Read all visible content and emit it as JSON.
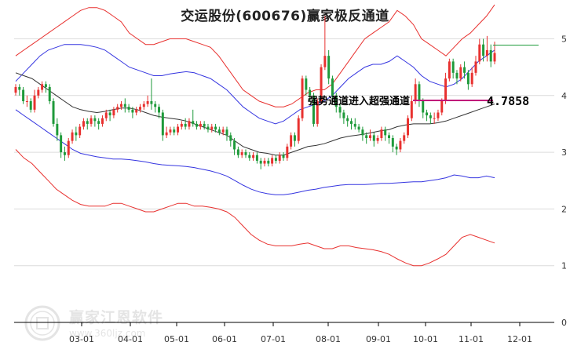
{
  "title": "交运股份(600676)赢家极反通道",
  "watermark": {
    "text": "赢家江恩软件",
    "url": "www.360ljz.com"
  },
  "chart_data": {
    "type": "candlestick",
    "title": "交运股份(600676)赢家极反通道",
    "x_labels": [
      "03-01",
      "04-01",
      "05-01",
      "06-01",
      "07-01",
      "08-01",
      "09-01",
      "10-01",
      "11-01",
      "12-01"
    ],
    "y_ticks": [
      0,
      1,
      2,
      3,
      4,
      5
    ],
    "ylim": [
      0,
      5.2
    ],
    "annotation": {
      "label": "强势通道进入超强通道",
      "value": "4.7858"
    },
    "candles": [
      [
        4.05,
        4.15,
        4.0,
        4.2
      ],
      [
        4.15,
        4.1,
        4.0,
        4.2
      ],
      [
        4.1,
        3.9,
        3.85,
        4.15
      ],
      [
        3.9,
        3.9,
        3.8,
        4.0
      ],
      [
        3.9,
        3.75,
        3.7,
        3.95
      ],
      [
        3.75,
        4.0,
        3.7,
        4.1
      ],
      [
        4.0,
        4.1,
        3.95,
        4.15
      ],
      [
        4.1,
        4.2,
        4.05,
        4.25
      ],
      [
        4.2,
        4.15,
        4.05,
        4.25
      ],
      [
        4.15,
        3.9,
        3.85,
        4.2
      ],
      [
        3.9,
        3.5,
        3.45,
        3.95
      ],
      [
        3.5,
        3.3,
        3.2,
        3.6
      ],
      [
        3.3,
        3.0,
        2.9,
        3.35
      ],
      [
        3.0,
        2.95,
        2.85,
        3.1
      ],
      [
        2.95,
        3.2,
        2.9,
        3.25
      ],
      [
        3.2,
        3.35,
        3.15,
        3.4
      ],
      [
        3.35,
        3.3,
        3.2,
        3.45
      ],
      [
        3.3,
        3.45,
        3.25,
        3.5
      ],
      [
        3.45,
        3.55,
        3.4,
        3.6
      ],
      [
        3.55,
        3.5,
        3.4,
        3.6
      ],
      [
        3.5,
        3.6,
        3.45,
        3.65
      ],
      [
        3.6,
        3.55,
        3.45,
        3.65
      ],
      [
        3.55,
        3.5,
        3.4,
        3.6
      ],
      [
        3.5,
        3.6,
        3.45,
        3.65
      ],
      [
        3.6,
        3.7,
        3.55,
        3.75
      ],
      [
        3.7,
        3.65,
        3.55,
        3.75
      ],
      [
        3.65,
        3.75,
        3.6,
        3.8
      ],
      [
        3.75,
        3.8,
        3.7,
        3.85
      ],
      [
        3.8,
        3.85,
        3.75,
        3.9
      ],
      [
        3.85,
        3.8,
        3.7,
        3.95
      ],
      [
        3.8,
        3.75,
        3.7,
        3.85
      ],
      [
        3.75,
        3.7,
        3.6,
        3.8
      ],
      [
        3.7,
        3.75,
        3.65,
        3.8
      ],
      [
        3.75,
        3.8,
        3.7,
        3.85
      ],
      [
        3.8,
        3.85,
        3.75,
        3.9
      ],
      [
        3.85,
        3.9,
        3.8,
        4.0
      ],
      [
        3.9,
        3.85,
        3.75,
        4.3
      ],
      [
        3.85,
        3.8,
        3.7,
        3.9
      ],
      [
        3.8,
        3.7,
        3.6,
        3.85
      ],
      [
        3.7,
        3.3,
        3.2,
        3.75
      ],
      [
        3.3,
        3.35,
        3.25,
        3.45
      ],
      [
        3.35,
        3.4,
        3.3,
        3.45
      ],
      [
        3.4,
        3.35,
        3.3,
        3.45
      ],
      [
        3.35,
        3.45,
        3.3,
        3.5
      ],
      [
        3.45,
        3.5,
        3.4,
        3.55
      ],
      [
        3.5,
        3.45,
        3.4,
        3.6
      ],
      [
        3.45,
        3.55,
        3.4,
        3.6
      ],
      [
        3.55,
        3.5,
        3.45,
        3.75
      ],
      [
        3.5,
        3.45,
        3.4,
        3.55
      ],
      [
        3.45,
        3.5,
        3.4,
        3.55
      ],
      [
        3.5,
        3.45,
        3.4,
        3.55
      ],
      [
        3.45,
        3.4,
        3.35,
        3.5
      ],
      [
        3.4,
        3.45,
        3.35,
        3.5
      ],
      [
        3.45,
        3.4,
        3.35,
        3.5
      ],
      [
        3.4,
        3.35,
        3.3,
        3.45
      ],
      [
        3.35,
        3.4,
        3.3,
        3.45
      ],
      [
        3.4,
        3.3,
        3.2,
        3.45
      ],
      [
        3.3,
        3.2,
        3.1,
        3.35
      ],
      [
        3.2,
        3.05,
        2.95,
        3.25
      ],
      [
        3.05,
        2.95,
        2.9,
        3.1
      ],
      [
        2.95,
        3.0,
        2.9,
        3.05
      ],
      [
        3.0,
        2.95,
        2.9,
        3.05
      ],
      [
        2.95,
        2.9,
        2.85,
        3.0
      ],
      [
        2.9,
        2.95,
        2.85,
        3.0
      ],
      [
        2.95,
        2.85,
        2.8,
        3.0
      ],
      [
        2.85,
        2.8,
        2.7,
        2.9
      ],
      [
        2.8,
        2.85,
        2.75,
        2.9
      ],
      [
        2.85,
        2.8,
        2.75,
        2.9
      ],
      [
        2.8,
        2.9,
        2.75,
        2.95
      ],
      [
        2.9,
        2.85,
        2.8,
        2.95
      ],
      [
        2.85,
        2.95,
        2.8,
        3.0
      ],
      [
        2.95,
        2.9,
        2.85,
        3.0
      ],
      [
        2.9,
        3.1,
        2.85,
        3.15
      ],
      [
        3.1,
        3.3,
        3.05,
        3.35
      ],
      [
        3.3,
        3.2,
        3.1,
        3.35
      ],
      [
        3.2,
        3.6,
        3.15,
        3.65
      ],
      [
        3.6,
        4.3,
        3.55,
        4.35
      ],
      [
        4.3,
        4.1,
        4.0,
        4.35
      ],
      [
        4.1,
        4.0,
        3.9,
        4.15
      ],
      [
        4.0,
        3.5,
        3.45,
        4.05
      ],
      [
        3.5,
        3.9,
        3.45,
        3.95
      ],
      [
        3.9,
        4.5,
        3.85,
        4.55
      ],
      [
        4.5,
        4.7,
        4.45,
        5.4
      ],
      [
        4.7,
        4.3,
        4.2,
        4.8
      ],
      [
        4.3,
        4.0,
        3.9,
        4.35
      ],
      [
        4.0,
        3.8,
        3.7,
        4.05
      ],
      [
        3.8,
        3.7,
        3.6,
        3.85
      ],
      [
        3.7,
        3.6,
        3.5,
        3.75
      ],
      [
        3.6,
        3.55,
        3.45,
        3.65
      ],
      [
        3.55,
        3.5,
        3.4,
        3.6
      ],
      [
        3.5,
        3.45,
        3.4,
        3.6
      ],
      [
        3.45,
        3.4,
        3.35,
        3.5
      ],
      [
        3.4,
        3.3,
        3.2,
        3.45
      ],
      [
        3.3,
        3.25,
        3.15,
        3.35
      ],
      [
        3.25,
        3.3,
        3.2,
        3.4
      ],
      [
        3.3,
        3.2,
        3.1,
        3.35
      ],
      [
        3.2,
        3.25,
        3.15,
        3.3
      ],
      [
        3.25,
        3.4,
        3.2,
        3.45
      ],
      [
        3.4,
        3.3,
        3.2,
        3.45
      ],
      [
        3.3,
        3.25,
        3.15,
        3.35
      ],
      [
        3.25,
        3.1,
        3.0,
        3.3
      ],
      [
        3.1,
        3.05,
        2.95,
        3.15
      ],
      [
        3.05,
        3.2,
        3.0,
        3.25
      ],
      [
        3.2,
        3.3,
        3.15,
        3.35
      ],
      [
        3.3,
        3.6,
        3.25,
        3.65
      ],
      [
        3.6,
        3.9,
        3.55,
        4.0
      ],
      [
        3.9,
        4.2,
        3.85,
        4.3
      ],
      [
        4.2,
        3.9,
        3.8,
        4.25
      ],
      [
        3.9,
        3.7,
        3.6,
        3.95
      ],
      [
        3.7,
        3.65,
        3.55,
        3.75
      ],
      [
        3.65,
        3.6,
        3.5,
        3.7
      ],
      [
        3.6,
        3.6,
        3.5,
        3.7
      ],
      [
        3.6,
        3.7,
        3.55,
        3.75
      ],
      [
        3.7,
        3.9,
        3.65,
        3.95
      ],
      [
        3.9,
        4.3,
        3.85,
        4.4
      ],
      [
        4.3,
        4.6,
        4.25,
        4.65
      ],
      [
        4.6,
        4.4,
        4.3,
        4.65
      ],
      [
        4.4,
        4.3,
        4.2,
        4.45
      ],
      [
        4.3,
        4.5,
        4.25,
        4.55
      ],
      [
        4.5,
        4.4,
        4.3,
        4.6
      ],
      [
        4.4,
        4.2,
        4.1,
        4.45
      ],
      [
        4.2,
        4.4,
        4.15,
        4.5
      ],
      [
        4.4,
        4.6,
        4.35,
        4.7
      ],
      [
        4.6,
        4.9,
        4.55,
        5.0
      ],
      [
        4.9,
        4.7,
        4.6,
        5.0
      ],
      [
        4.7,
        4.8,
        4.6,
        5.05
      ],
      [
        4.8,
        4.6,
        4.5,
        4.9
      ],
      [
        4.6,
        4.75,
        4.55,
        4.95
      ]
    ],
    "series": [
      {
        "name": "",
        "color": "#e8312f",
        "values": [
          4.7,
          4.8,
          4.9,
          5.0,
          5.1,
          5.2,
          5.3,
          5.4,
          5.5,
          5.55,
          5.55,
          5.5,
          5.4,
          5.3,
          5.1,
          5.0,
          4.9,
          4.9,
          4.95,
          5.0,
          5.0,
          5.0,
          4.95,
          4.9,
          4.85,
          4.7,
          4.5,
          4.3,
          4.1,
          4.0,
          3.9,
          3.85,
          3.8,
          3.8,
          3.85,
          3.95,
          4.05,
          4.1,
          4.1,
          4.2,
          4.4,
          4.6,
          4.8,
          5.0,
          5.1,
          5.2,
          5.3,
          5.5,
          5.4,
          5.25,
          5.0,
          4.9,
          4.8,
          4.7,
          4.85,
          5.0,
          5.1,
          5.25,
          5.4,
          5.6
        ]
      },
      {
        "name": "",
        "color": "#3535e0",
        "values": [
          4.25,
          4.4,
          4.55,
          4.7,
          4.8,
          4.85,
          4.9,
          4.9,
          4.9,
          4.88,
          4.85,
          4.8,
          4.7,
          4.6,
          4.5,
          4.45,
          4.4,
          4.35,
          4.35,
          4.38,
          4.4,
          4.42,
          4.4,
          4.35,
          4.3,
          4.2,
          4.1,
          3.95,
          3.8,
          3.7,
          3.6,
          3.55,
          3.5,
          3.55,
          3.65,
          3.75,
          3.8,
          3.85,
          3.9,
          4.0,
          4.15,
          4.3,
          4.4,
          4.5,
          4.55,
          4.55,
          4.6,
          4.7,
          4.6,
          4.5,
          4.35,
          4.25,
          4.2,
          4.15,
          4.2,
          4.3,
          4.45,
          4.6,
          4.7,
          4.8
        ]
      },
      {
        "name": "",
        "color": "#333333",
        "values": [
          4.4,
          4.35,
          4.3,
          4.2,
          4.1,
          4.0,
          3.9,
          3.8,
          3.75,
          3.72,
          3.7,
          3.72,
          3.75,
          3.78,
          3.78,
          3.75,
          3.7,
          3.65,
          3.62,
          3.6,
          3.58,
          3.55,
          3.5,
          3.45,
          3.4,
          3.35,
          3.3,
          3.2,
          3.1,
          3.05,
          3.0,
          2.98,
          2.95,
          2.95,
          3.0,
          3.05,
          3.1,
          3.12,
          3.15,
          3.2,
          3.25,
          3.28,
          3.3,
          3.32,
          3.35,
          3.38,
          3.4,
          3.45,
          3.48,
          3.5,
          3.5,
          3.5,
          3.52,
          3.55,
          3.6,
          3.65,
          3.7,
          3.75,
          3.8,
          3.85
        ]
      },
      {
        "name": "",
        "color": "#3535e0",
        "values": [
          3.75,
          3.65,
          3.55,
          3.45,
          3.35,
          3.25,
          3.15,
          3.05,
          2.98,
          2.95,
          2.92,
          2.9,
          2.88,
          2.88,
          2.87,
          2.85,
          2.83,
          2.8,
          2.78,
          2.77,
          2.76,
          2.75,
          2.73,
          2.7,
          2.67,
          2.63,
          2.58,
          2.5,
          2.42,
          2.35,
          2.3,
          2.27,
          2.25,
          2.25,
          2.27,
          2.3,
          2.33,
          2.35,
          2.38,
          2.4,
          2.42,
          2.43,
          2.43,
          2.43,
          2.44,
          2.45,
          2.45,
          2.46,
          2.47,
          2.48,
          2.48,
          2.5,
          2.52,
          2.55,
          2.6,
          2.58,
          2.55,
          2.55,
          2.58,
          2.55
        ]
      },
      {
        "name": "",
        "color": "#e8312f",
        "values": [
          3.05,
          2.9,
          2.8,
          2.65,
          2.5,
          2.35,
          2.25,
          2.15,
          2.08,
          2.05,
          2.05,
          2.05,
          2.1,
          2.1,
          2.05,
          2.0,
          1.95,
          1.95,
          2.0,
          2.05,
          2.1,
          2.1,
          2.05,
          2.05,
          2.03,
          2.0,
          1.95,
          1.85,
          1.7,
          1.55,
          1.45,
          1.38,
          1.35,
          1.35,
          1.35,
          1.38,
          1.4,
          1.35,
          1.3,
          1.3,
          1.35,
          1.35,
          1.32,
          1.3,
          1.28,
          1.25,
          1.2,
          1.12,
          1.05,
          1.0,
          1.0,
          1.05,
          1.12,
          1.2,
          1.35,
          1.5,
          1.55,
          1.5,
          1.45,
          1.4
        ]
      }
    ]
  }
}
